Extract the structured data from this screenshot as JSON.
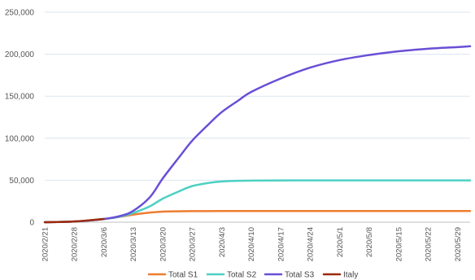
{
  "chart_data": {
    "type": "line",
    "title": "",
    "xlabel": "",
    "ylabel": "",
    "ylim": [
      0,
      250000
    ],
    "y_ticks": [
      {
        "value": 0,
        "label": "0"
      },
      {
        "value": 50000,
        "label": "50,000"
      },
      {
        "value": 100000,
        "label": "100,000"
      },
      {
        "value": 150000,
        "label": "150,000"
      },
      {
        "value": 200000,
        "label": "200,000"
      },
      {
        "value": 250000,
        "label": "250,000"
      }
    ],
    "x_range": [
      "2020-02-21",
      "2020-06-01"
    ],
    "x_ticks": [
      {
        "date": "2020-02-21",
        "label": "2020/2/21"
      },
      {
        "date": "2020-02-28",
        "label": "2020/2/28"
      },
      {
        "date": "2020-03-06",
        "label": "2020/3/6"
      },
      {
        "date": "2020-03-13",
        "label": "2020/3/13"
      },
      {
        "date": "2020-03-20",
        "label": "2020/3/20"
      },
      {
        "date": "2020-03-27",
        "label": "2020/3/27"
      },
      {
        "date": "2020-04-03",
        "label": "2020/4/3"
      },
      {
        "date": "2020-04-10",
        "label": "2020/4/10"
      },
      {
        "date": "2020-04-17",
        "label": "2020/4/17"
      },
      {
        "date": "2020-04-24",
        "label": "2020/4/24"
      },
      {
        "date": "2020-05-01",
        "label": "2020/5/1"
      },
      {
        "date": "2020-05-08",
        "label": "2020/5/8"
      },
      {
        "date": "2020-05-15",
        "label": "2020/5/15"
      },
      {
        "date": "2020-05-22",
        "label": "2020/5/22"
      },
      {
        "date": "2020-05-29",
        "label": "2020/5/29"
      }
    ],
    "grid": true,
    "legend": "bottom",
    "series": [
      {
        "name": "Total S1",
        "color": "#ed7d31",
        "points": [
          [
            "2020-02-21",
            0
          ],
          [
            "2020-02-28",
            800
          ],
          [
            "2020-03-06",
            3800
          ],
          [
            "2020-03-10",
            6500
          ],
          [
            "2020-03-13",
            9000
          ],
          [
            "2020-03-17",
            11500
          ],
          [
            "2020-03-20",
            12600
          ],
          [
            "2020-03-24",
            13000
          ],
          [
            "2020-03-27",
            13200
          ],
          [
            "2020-04-03",
            13300
          ],
          [
            "2020-04-17",
            13300
          ],
          [
            "2020-05-01",
            13300
          ],
          [
            "2020-05-15",
            13300
          ],
          [
            "2020-06-01",
            13300
          ]
        ]
      },
      {
        "name": "Total S2",
        "color": "#4dd0c3",
        "points": [
          [
            "2020-02-21",
            0
          ],
          [
            "2020-02-28",
            800
          ],
          [
            "2020-03-06",
            3800
          ],
          [
            "2020-03-10",
            6800
          ],
          [
            "2020-03-13",
            11000
          ],
          [
            "2020-03-17",
            19000
          ],
          [
            "2020-03-20",
            28000
          ],
          [
            "2020-03-24",
            37000
          ],
          [
            "2020-03-27",
            43000
          ],
          [
            "2020-03-31",
            46800
          ],
          [
            "2020-04-03",
            48500
          ],
          [
            "2020-04-10",
            49500
          ],
          [
            "2020-04-24",
            49800
          ],
          [
            "2020-05-08",
            49800
          ],
          [
            "2020-05-22",
            49800
          ],
          [
            "2020-06-01",
            49800
          ]
        ]
      },
      {
        "name": "Total S3",
        "color": "#6a4fd6",
        "points": [
          [
            "2020-02-21",
            0
          ],
          [
            "2020-02-28",
            800
          ],
          [
            "2020-03-06",
            3800
          ],
          [
            "2020-03-10",
            7500
          ],
          [
            "2020-03-13",
            13500
          ],
          [
            "2020-03-17",
            30000
          ],
          [
            "2020-03-20",
            52000
          ],
          [
            "2020-03-24",
            78000
          ],
          [
            "2020-03-27",
            97000
          ],
          [
            "2020-03-31",
            117000
          ],
          [
            "2020-04-03",
            131000
          ],
          [
            "2020-04-07",
            145000
          ],
          [
            "2020-04-10",
            155000
          ],
          [
            "2020-04-17",
            171000
          ],
          [
            "2020-04-24",
            184000
          ],
          [
            "2020-05-01",
            193000
          ],
          [
            "2020-05-08",
            199000
          ],
          [
            "2020-05-15",
            203500
          ],
          [
            "2020-05-22",
            206500
          ],
          [
            "2020-05-29",
            208500
          ],
          [
            "2020-06-01",
            209500
          ]
        ]
      },
      {
        "name": "Italy",
        "color": "#9e2a0b",
        "points": [
          [
            "2020-02-21",
            0
          ],
          [
            "2020-02-24",
            200
          ],
          [
            "2020-02-28",
            900
          ],
          [
            "2020-03-02",
            2000
          ],
          [
            "2020-03-06",
            3900
          ]
        ]
      }
    ]
  }
}
